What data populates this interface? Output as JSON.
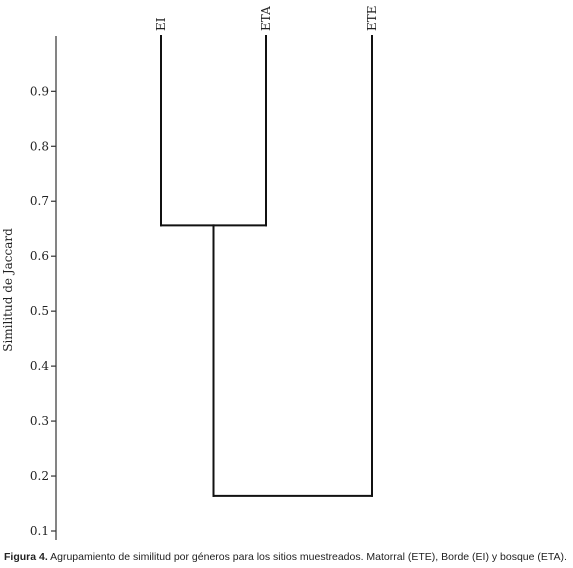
{
  "chart_data": {
    "type": "dendrogram",
    "ylabel": "Similitud de Jaccard",
    "yticks": [
      0.1,
      0.2,
      0.3,
      0.4,
      0.5,
      0.6,
      0.7,
      0.8,
      0.9
    ],
    "leaves": [
      "EI",
      "ETA",
      "ETE"
    ],
    "merges": [
      {
        "left": "EI",
        "right": "ETA",
        "similarity": 0.656
      },
      {
        "left": "EI+ETA",
        "right": "ETE",
        "similarity": 0.164
      }
    ]
  },
  "caption": {
    "label": "Figura 4.",
    "text": " Agrupamiento de similitud por géneros para los sitios muestreados. Matorral (ETE), Borde (EI) y bosque (ETA)."
  }
}
